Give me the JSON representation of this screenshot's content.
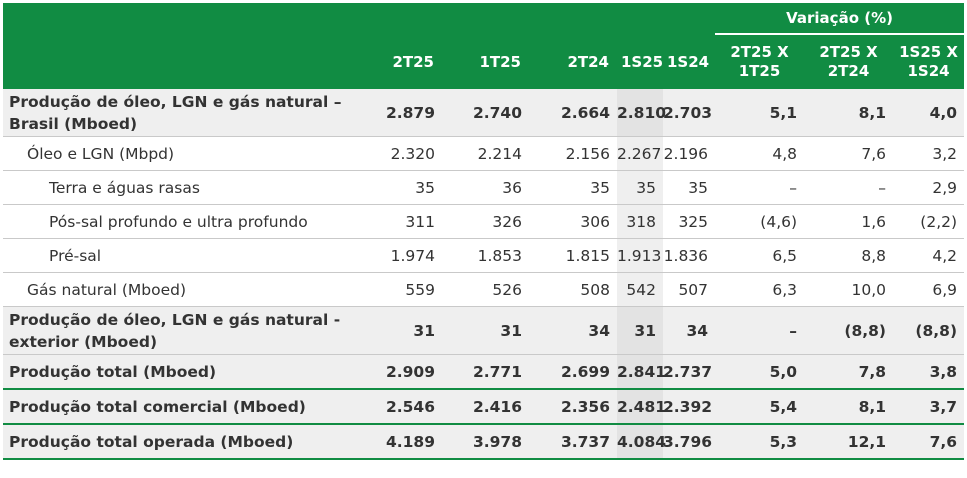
{
  "header": {
    "variation_group": "Variação (%)",
    "columns": [
      "2T25",
      "1T25",
      "2T24",
      "1S25",
      "1S24"
    ],
    "variation_columns": [
      {
        "line1": "2T25 X",
        "line2": "1T25"
      },
      {
        "line1": "2T25 X",
        "line2": "2T24"
      },
      {
        "line1": "1S25 X",
        "line2": "1S24"
      }
    ]
  },
  "rows": [
    {
      "label_line1": "Produção de óleo, LGN e gás natural –",
      "label_line2": "Brasil (Mboed)",
      "values": [
        "2.879",
        "2.740",
        "2.664",
        "2.810",
        "2.703",
        "5,1",
        "8,1",
        "4,0"
      ]
    },
    {
      "label": "Óleo e LGN (Mbpd)",
      "values": [
        "2.320",
        "2.214",
        "2.156",
        "2.267",
        "2.196",
        "4,8",
        "7,6",
        "3,2"
      ]
    },
    {
      "label": "Terra e águas rasas",
      "values": [
        "35",
        "36",
        "35",
        "35",
        "35",
        "–",
        "–",
        "2,9"
      ]
    },
    {
      "label": "Pós-sal profundo e ultra profundo",
      "values": [
        "311",
        "326",
        "306",
        "318",
        "325",
        "(4,6)",
        "1,6",
        "(2,2)"
      ]
    },
    {
      "label": "Pré-sal",
      "values": [
        "1.974",
        "1.853",
        "1.815",
        "1.913",
        "1.836",
        "6,5",
        "8,8",
        "4,2"
      ]
    },
    {
      "label": "Gás natural (Mboed)",
      "values": [
        "559",
        "526",
        "508",
        "542",
        "507",
        "6,3",
        "10,0",
        "6,9"
      ]
    },
    {
      "label_line1": "Produção de óleo, LGN e gás natural -",
      "label_line2": "exterior (Mboed)",
      "values": [
        "31",
        "31",
        "34",
        "31",
        "34",
        "–",
        "(8,8)",
        "(8,8)"
      ]
    },
    {
      "label": "Produção total (Mboed)",
      "values": [
        "2.909",
        "2.771",
        "2.699",
        "2.841",
        "2.737",
        "5,0",
        "7,8",
        "3,8"
      ]
    },
    {
      "label": "Produção total comercial (Mboed)",
      "values": [
        "2.546",
        "2.416",
        "2.356",
        "2.481",
        "2.392",
        "5,4",
        "8,1",
        "3,7"
      ]
    },
    {
      "label": "Produção total operada (Mboed)",
      "values": [
        "4.189",
        "3.978",
        "3.737",
        "4.084",
        "3.796",
        "5,3",
        "12,1",
        "7,6"
      ]
    }
  ],
  "colors": {
    "header_bg": "#118c43",
    "shade": "#efefef",
    "shade_dark": "#e3e3e3"
  }
}
